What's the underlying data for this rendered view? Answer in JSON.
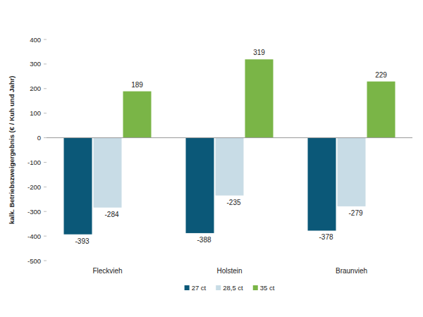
{
  "chart_data": {
    "type": "bar",
    "y_label": "kalk. Betriebszweigergebnis (€ / Kuh und Jahr)",
    "categories": [
      "Fleckvieh",
      "Holstein",
      "Braunvieh"
    ],
    "series": [
      {
        "name": "27 ct",
        "color": "#0b5878",
        "values": [
          -393,
          -388,
          -378
        ]
      },
      {
        "name": "28,5 ct",
        "color": "#c8dce6",
        "values": [
          -284,
          -235,
          -279
        ]
      },
      {
        "name": "35 ct",
        "color": "#7ab547",
        "values": [
          189,
          319,
          229
        ]
      }
    ],
    "ylim": [
      -500,
      400
    ],
    "yticks": [
      -500,
      -400,
      -300,
      -200,
      -100,
      0,
      100,
      200,
      300,
      400
    ],
    "grid": false,
    "legend": "bottom",
    "data_labels": true
  }
}
